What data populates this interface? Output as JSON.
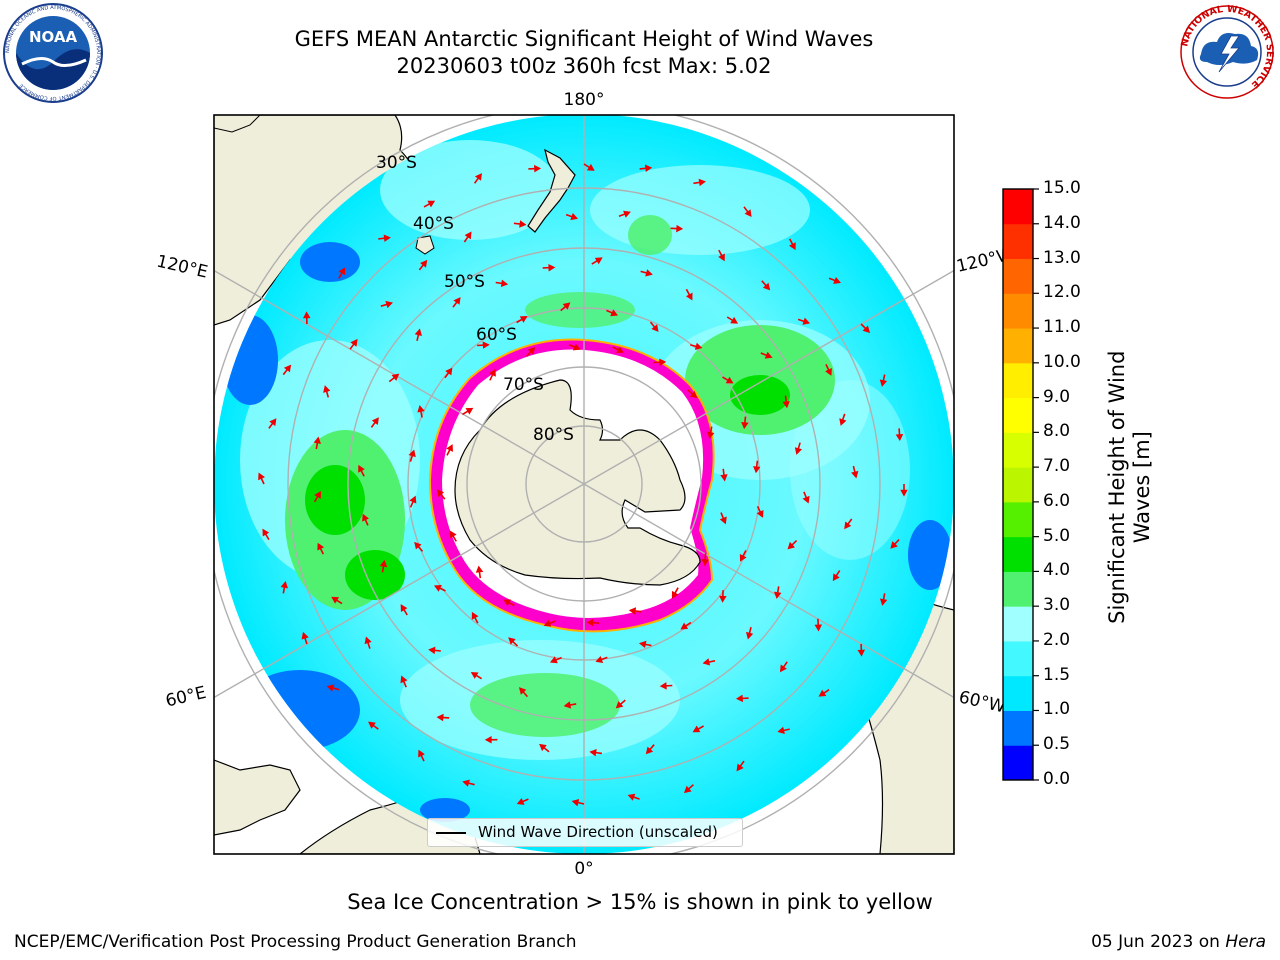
{
  "header": {
    "title_line1": "GEFS MEAN Antarctic Significant Height of Wind Waves",
    "title_line2": "20230603 t00z 360h fcst   Max: 5.02"
  },
  "logos": {
    "noaa": "NOAA",
    "noaa_ring": "NATIONAL OCEANIC AND ATMOSPHERIC ADMINISTRATION · U.S. DEPARTMENT OF COMMERCE",
    "nws_ring": "NATIONAL WEATHER SERVICE"
  },
  "map": {
    "longitude_labels": {
      "top": "180°",
      "bottom": "0°",
      "left_upper": "120°E",
      "left_lower": "60°E",
      "right_upper": "120°W",
      "right_lower": "60°W"
    },
    "latitude_labels": [
      "30°S",
      "40°S",
      "50°S",
      "60°S",
      "70°S",
      "80°S"
    ],
    "legend_label": "Wind Wave Direction (unscaled)"
  },
  "colorbar": {
    "title": "Significant Height of Wind Waves [m]",
    "ticks": [
      "0.0",
      "0.5",
      "1.0",
      "1.5",
      "2.0",
      "3.0",
      "4.0",
      "5.0",
      "6.0",
      "7.0",
      "8.0",
      "9.0",
      "10.0",
      "11.0",
      "12.0",
      "13.0",
      "14.0",
      "15.0"
    ],
    "colors": [
      "#0000ff",
      "#0077ff",
      "#00e8ff",
      "#44f8ff",
      "#a0ffff",
      "#50f070",
      "#00e000",
      "#55ef00",
      "#bbf500",
      "#d8ff00",
      "#ffff00",
      "#ffee00",
      "#ffb000",
      "#ff8c00",
      "#ff6500",
      "#ff3000",
      "#ff0000"
    ]
  },
  "note": "Sea Ice Concentration > 15% is shown in pink to yellow",
  "footer": {
    "left": "NCEP/EMC/Verification Post Processing Product Generation Branch",
    "date": "05 Jun 2023 on ",
    "machine": "Hera"
  }
}
